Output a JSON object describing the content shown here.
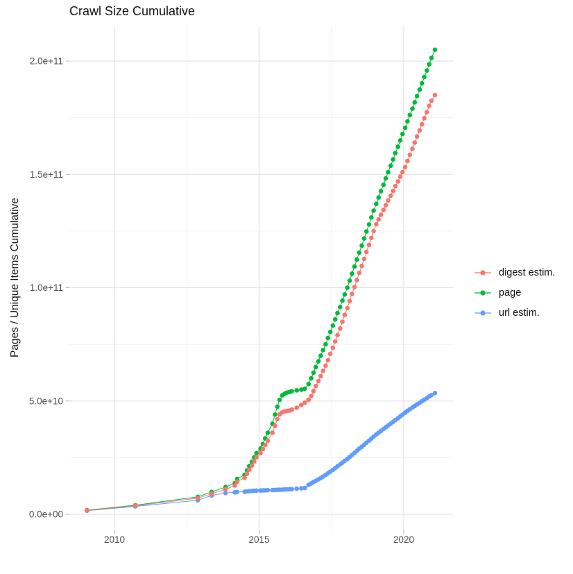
{
  "title": "Crawl Size Cumulative",
  "chart_data": {
    "type": "scatter",
    "connected": true,
    "title": "Crawl Size Cumulative",
    "xlabel": "",
    "ylabel": "Pages / Unique Items Cumulative",
    "legend_position": "right",
    "grid": true,
    "background": "#FFFFFF",
    "value_unit_note": "series values are in billions (1e9); y tick labels shown in scientific notation",
    "xlim": [
      2008.45,
      2021.75
    ],
    "ylim_billions": [
      -7,
      215
    ],
    "x_ticks": {
      "major": [
        2010,
        2015,
        2020
      ],
      "minor": [
        2012.5,
        2017.5
      ],
      "labels": [
        "2010",
        "2015",
        "2020"
      ]
    },
    "y_ticks": {
      "major_billions": [
        0,
        50,
        100,
        150,
        200
      ],
      "minor_billions": [
        25,
        75,
        125,
        175
      ],
      "labels": [
        "0.0e+00",
        "5.0e+10",
        "1.0e+11",
        "1.5e+11",
        "2.0e+11"
      ]
    },
    "x": [
      2009.05,
      2010.72,
      2012.88,
      2013.36,
      2013.84,
      2014.16,
      2014.24,
      2014.5,
      2014.58,
      2014.66,
      2014.75,
      2014.83,
      2014.91,
      2015.05,
      2015.13,
      2015.21,
      2015.3,
      2015.46,
      2015.55,
      2015.63,
      2015.71,
      2015.8,
      2015.88,
      2015.96,
      2016.05,
      2016.13,
      2016.3,
      2016.46,
      2016.58,
      2016.71,
      2016.8,
      2016.88,
      2016.96,
      2017.05,
      2017.13,
      2017.21,
      2017.3,
      2017.38,
      2017.46,
      2017.55,
      2017.63,
      2017.71,
      2017.8,
      2017.88,
      2017.96,
      2018.05,
      2018.13,
      2018.21,
      2018.3,
      2018.38,
      2018.46,
      2018.55,
      2018.63,
      2018.71,
      2018.8,
      2018.88,
      2018.96,
      2019.05,
      2019.13,
      2019.21,
      2019.3,
      2019.38,
      2019.46,
      2019.55,
      2019.63,
      2019.71,
      2019.8,
      2019.88,
      2019.96,
      2020.05,
      2020.13,
      2020.21,
      2020.3,
      2020.38,
      2020.46,
      2020.55,
      2020.63,
      2020.71,
      2020.8,
      2020.88,
      2020.96,
      2021.08
    ],
    "series": [
      {
        "name": "digest estim.",
        "color": "#F8766D",
        "values": [
          1.7,
          3.8,
          7.1,
          9.1,
          11.0,
          12.7,
          14.4,
          16.1,
          17.9,
          19.7,
          21.5,
          23.3,
          25.1,
          27.0,
          28.8,
          30.6,
          32.5,
          36.0,
          39.0,
          42.0,
          44.1,
          45.0,
          45.4,
          45.6,
          45.8,
          46.2,
          47.0,
          48.3,
          49.3,
          50.5,
          52.2,
          54.4,
          56.6,
          58.8,
          61.0,
          63.3,
          65.6,
          68.0,
          70.8,
          73.5,
          76.3,
          79.1,
          82.0,
          85.0,
          88.0,
          91.0,
          94.1,
          97.2,
          100.3,
          103.4,
          106.5,
          109.6,
          112.7,
          115.8,
          118.9,
          122.0,
          125.0,
          128.0,
          130.1,
          132.2,
          134.3,
          136.4,
          138.5,
          140.6,
          142.7,
          144.8,
          146.9,
          149.0,
          151.0,
          153.2,
          155.9,
          158.6,
          161.3,
          164.0,
          166.7,
          169.4,
          172.1,
          174.8,
          177.5,
          180.2,
          182.5,
          185.0
        ]
      },
      {
        "name": "page",
        "color": "#00BA38",
        "values": [
          1.8,
          4.0,
          7.7,
          9.9,
          12.0,
          13.8,
          15.6,
          17.5,
          19.4,
          21.3,
          23.2,
          25.1,
          27.0,
          29.0,
          31.0,
          33.5,
          36.0,
          40.0,
          44.0,
          47.5,
          50.5,
          52.5,
          53.2,
          53.7,
          54.0,
          54.3,
          54.7,
          55.0,
          55.4,
          57.5,
          60.0,
          62.5,
          65.0,
          67.5,
          70.0,
          72.5,
          75.0,
          77.8,
          80.5,
          83.3,
          86.0,
          88.8,
          91.5,
          94.3,
          97.0,
          100.0,
          103.1,
          106.2,
          109.3,
          112.4,
          115.5,
          118.6,
          121.7,
          124.8,
          127.9,
          131.0,
          134.0,
          137.0,
          139.8,
          142.6,
          145.4,
          148.2,
          151.0,
          153.8,
          156.6,
          159.4,
          162.2,
          165.0,
          167.8,
          170.6,
          173.4,
          176.2,
          179.0,
          181.8,
          184.6,
          187.4,
          190.2,
          193.0,
          195.8,
          198.6,
          201.4,
          205.0
        ]
      },
      {
        "name": "url estim.",
        "color": "#619CFF",
        "values": [
          1.6,
          3.5,
          6.2,
          8.3,
          9.4,
          9.7,
          9.85,
          10.0,
          10.1,
          10.2,
          10.3,
          10.4,
          10.45,
          10.5,
          10.55,
          10.6,
          10.65,
          10.7,
          10.75,
          10.8,
          10.85,
          10.9,
          10.95,
          11.0,
          11.05,
          11.1,
          11.3,
          11.45,
          11.6,
          13.0,
          13.6,
          14.2,
          14.8,
          15.4,
          16.0,
          16.7,
          17.4,
          18.1,
          18.8,
          19.6,
          20.4,
          21.2,
          22.0,
          22.8,
          23.6,
          24.4,
          25.3,
          26.2,
          27.1,
          28.0,
          28.9,
          29.8,
          30.7,
          31.6,
          32.5,
          33.4,
          34.3,
          35.2,
          36.0,
          36.8,
          37.6,
          38.4,
          39.2,
          40.0,
          40.8,
          41.6,
          42.4,
          43.2,
          44.0,
          44.9,
          45.7,
          46.4,
          47.1,
          47.8,
          48.5,
          49.2,
          49.9,
          50.6,
          51.3,
          52.0,
          52.6,
          53.5
        ]
      }
    ],
    "colors": {
      "digest_estim": "#F8766D",
      "page": "#00BA38",
      "url_estim": "#619CFF",
      "grid_major": "#E3E3E3",
      "grid_minor": "#F1F1F1",
      "tick": "#B0B0B0",
      "tick_label": "#4D4D4D"
    }
  }
}
